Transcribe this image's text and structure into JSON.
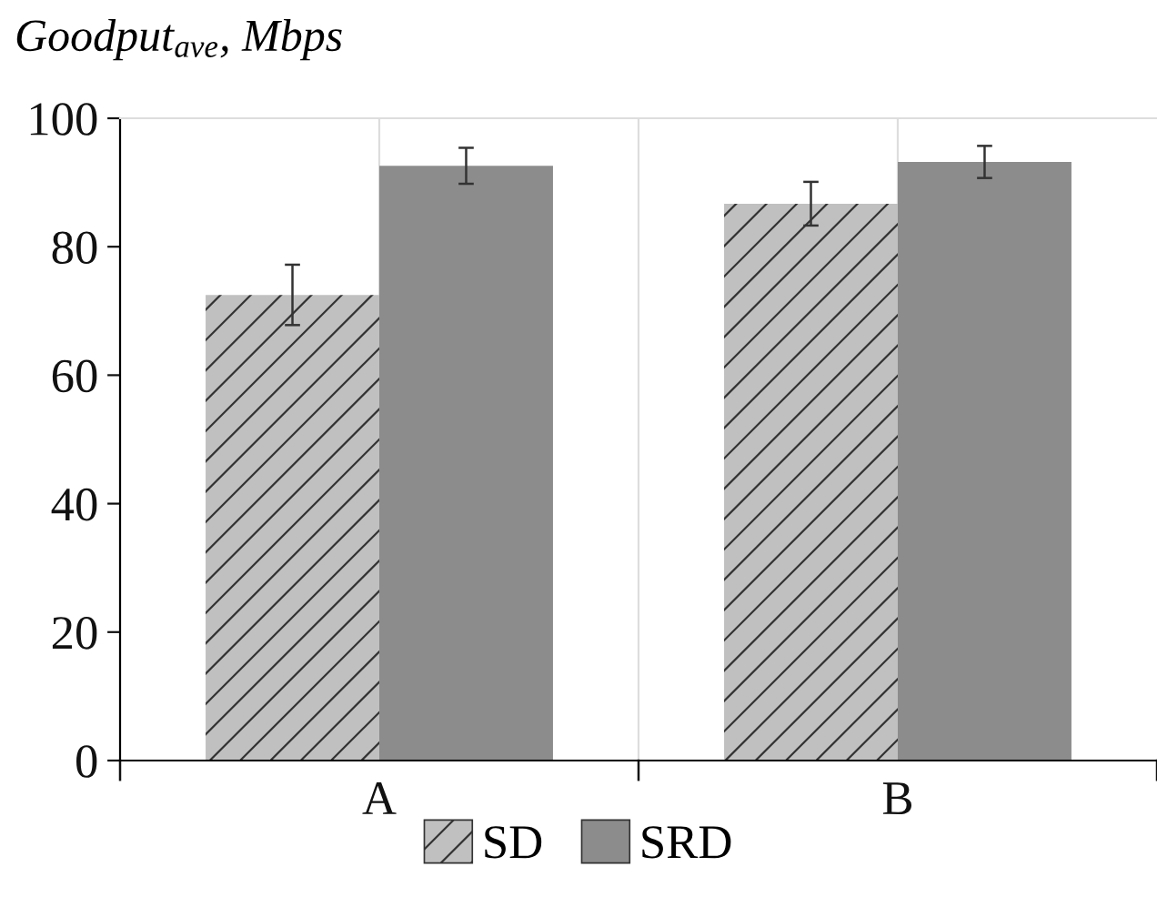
{
  "chart_data": {
    "type": "bar",
    "title": "Goodput$_{ave}$, Mbps",
    "categories": [
      "A",
      "B"
    ],
    "series": [
      {
        "name": "SD",
        "color": "#c0c0c0",
        "values": [
          72.5,
          86.7
        ],
        "errors": [
          4.7,
          3.4
        ]
      },
      {
        "name": "SRD",
        "color": "#8c8c8c",
        "values": [
          92.6,
          93.2
        ],
        "errors": [
          2.8,
          2.5
        ]
      }
    ],
    "ylim": [
      0,
      100
    ],
    "yticks": [
      0,
      20,
      40,
      60,
      80,
      100
    ],
    "grid": "x",
    "legend": "bottom"
  }
}
